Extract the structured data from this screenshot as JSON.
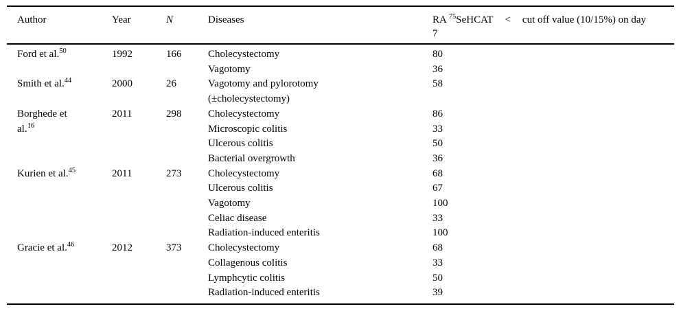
{
  "table": {
    "header": {
      "author": "Author",
      "year": "Year",
      "n": "N",
      "diseases": "Diseases",
      "ra_col": {
        "pre": "RA",
        "isotope_sup": "75",
        "tracer": "SeHCAT",
        "lt": "<",
        "tail": "cut off value (10/15%) on day",
        "wrap_line": "7"
      }
    },
    "studies": [
      {
        "author": "Ford et al.",
        "ref_sup": "50",
        "year": "1992",
        "n": "166",
        "entries": [
          {
            "disease": "Cholecystectomy",
            "value": "80"
          },
          {
            "disease": "Vagotomy",
            "value": "36"
          }
        ]
      },
      {
        "author": "Smith et al.",
        "ref_sup": "44",
        "year": "2000",
        "n": "26",
        "entries": [
          {
            "disease": "Vagotomy and pylorotomy\n(±cholecystectomy)",
            "value": "58"
          }
        ]
      },
      {
        "author": "Borghede et\nal.",
        "ref_sup": "16",
        "year": "2011",
        "n": "298",
        "entries": [
          {
            "disease": "Cholecystectomy",
            "value": "86"
          },
          {
            "disease": "Microscopic colitis",
            "value": "33"
          },
          {
            "disease": "Ulcerous colitis",
            "value": "50"
          },
          {
            "disease": "Bacterial overgrowth",
            "value": "36"
          }
        ]
      },
      {
        "author": "Kurien et al.",
        "ref_sup": "45",
        "year": "2011",
        "n": "273",
        "entries": [
          {
            "disease": "Cholecystectomy",
            "value": "68"
          },
          {
            "disease": "Ulcerous colitis",
            "value": "67"
          },
          {
            "disease": "Vagotomy",
            "value": "100"
          },
          {
            "disease": "Celiac disease",
            "value": "33"
          },
          {
            "disease": "Radiation-induced enteritis",
            "value": "100"
          }
        ]
      },
      {
        "author": "Gracie et al.",
        "ref_sup": "46",
        "year": "2012",
        "n": "373",
        "entries": [
          {
            "disease": "Cholecystectomy",
            "value": "68"
          },
          {
            "disease": "Collagenous colitis",
            "value": "33"
          },
          {
            "disease": "Lymphcytic colitis",
            "value": "50"
          },
          {
            "disease": "Radiation-induced enteritis",
            "value": "39"
          }
        ]
      }
    ]
  },
  "colors": {
    "text": "#000000",
    "rule": "#000000",
    "background": "#ffffff"
  }
}
